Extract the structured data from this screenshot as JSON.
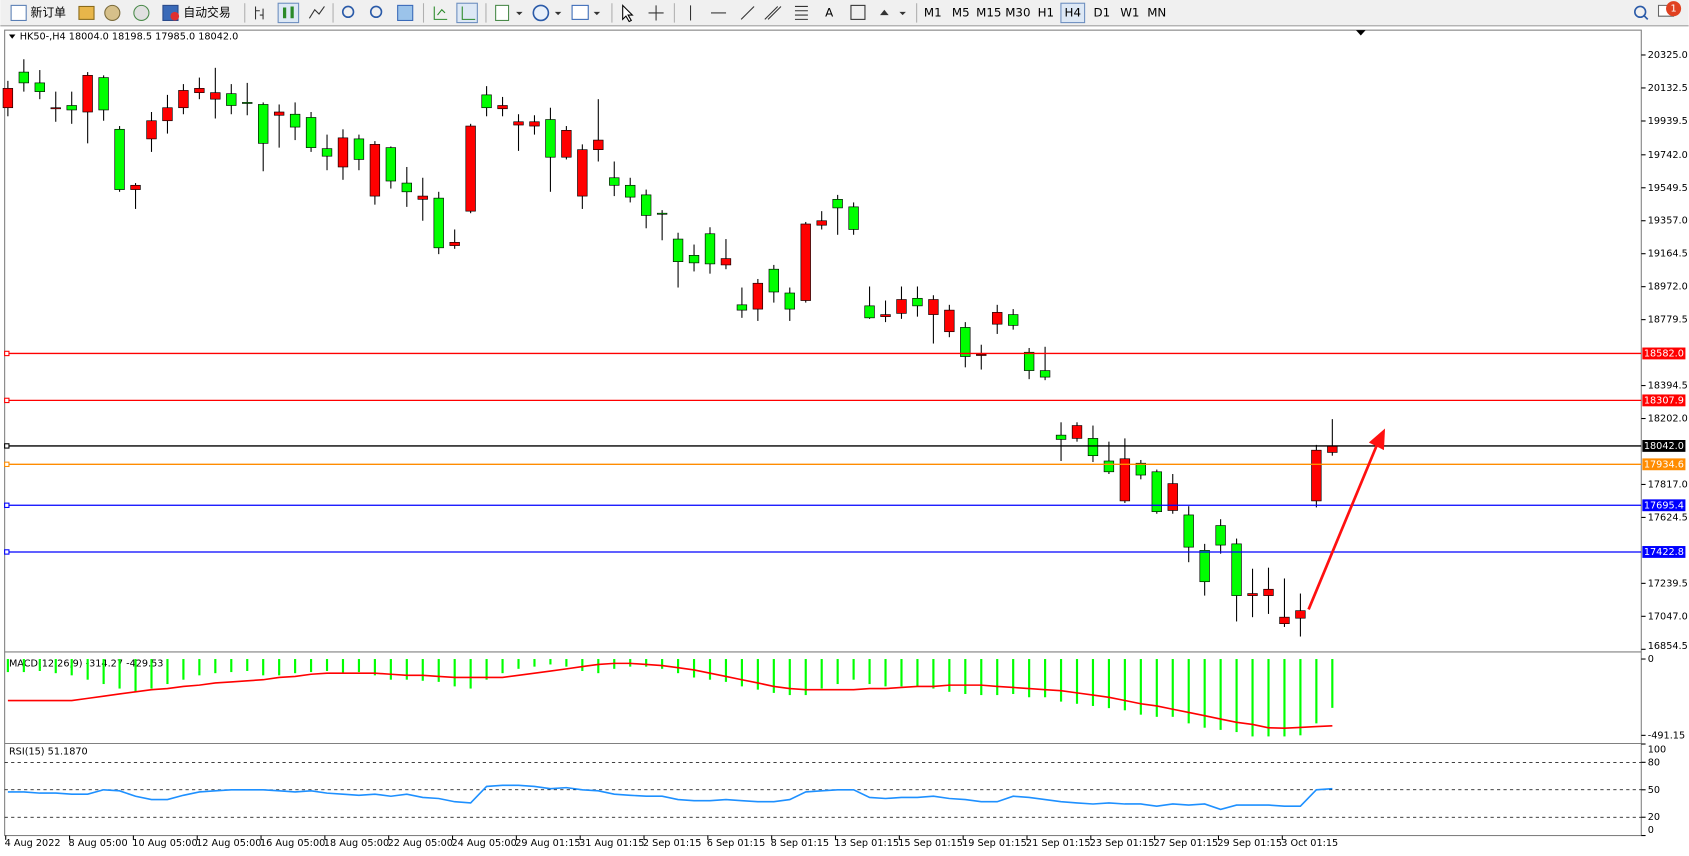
{
  "toolbar": {
    "new_order": "新订单",
    "auto_trading": "自动交易",
    "timeframes": [
      "M1",
      "M5",
      "M15",
      "M30",
      "H1",
      "H4",
      "D1",
      "W1",
      "MN"
    ],
    "notifications": "1"
  },
  "chart_data": [
    {
      "type": "candlestick",
      "title": "HK50-,H4  18004.0 18198.5 17985.0 18042.0",
      "up_color": "#ff0000",
      "down_color": "#00ff00",
      "categories": [
        "4 Aug 2022",
        null,
        null,
        null,
        "8 Aug 05:00",
        null,
        null,
        null,
        "10 Aug 05:00",
        null,
        null,
        null,
        "12 Aug 05:00",
        null,
        null,
        null,
        "16 Aug 05:00",
        null,
        null,
        null,
        "18 Aug 05:00",
        null,
        null,
        null,
        "22 Aug 05:00",
        null,
        null,
        null,
        "24 Aug 05:00",
        null,
        null,
        null,
        "29 Aug 01:15",
        null,
        null,
        null,
        "31 Aug 01:15",
        null,
        null,
        null,
        "2 Sep 01:15",
        null,
        null,
        null,
        "6 Sep 01:15",
        null,
        null,
        null,
        "8 Sep 01:15",
        null,
        null,
        null,
        "13 Sep 01:15",
        null,
        null,
        null,
        "15 Sep 01:15",
        null,
        null,
        null,
        "19 Sep 01:15",
        null,
        null,
        null,
        "21 Sep 01:15",
        null,
        null,
        null,
        "23 Sep 01:15",
        null,
        null,
        null,
        "27 Sep 01:15",
        null,
        null,
        null,
        "29 Sep 01:15",
        null,
        null,
        null,
        "3 Oct 01:15",
        null,
        null,
        null
      ],
      "open": [
        20017,
        20225,
        20162,
        20011,
        20030,
        19992,
        20193,
        19891,
        19539,
        19835,
        19941,
        20017,
        20105,
        20067,
        20099,
        20048,
        20036,
        19973,
        19979,
        19960,
        19778,
        19671,
        19835,
        19501,
        19784,
        19577,
        19482,
        19489,
        19212,
        19413,
        20092,
        20011,
        19916,
        19910,
        19948,
        19728,
        19501,
        19772,
        19608,
        19564,
        19508,
        19401,
        19250,
        19155,
        19281,
        19099,
        18866,
        18841,
        19074,
        18935,
        18891,
        19331,
        19482,
        19438,
        18860,
        18797,
        18816,
        18904,
        18809,
        18709,
        18734,
        18570,
        18753,
        18809,
        18589,
        18482,
        18105,
        18086,
        18086,
        17954,
        17721,
        17941,
        17891,
        17665,
        17639,
        17432,
        17577,
        17470,
        17168,
        17168,
        17004,
        17036,
        17721,
        18004
      ],
      "high": [
        20174,
        20300,
        20237,
        20111,
        20111,
        20225,
        20206,
        19910,
        19577,
        19992,
        20092,
        20155,
        20193,
        20250,
        20155,
        20162,
        20048,
        20036,
        20048,
        19992,
        19860,
        19891,
        19860,
        19822,
        19791,
        19671,
        19608,
        19526,
        19306,
        19923,
        20143,
        20080,
        19979,
        19973,
        20017,
        19910,
        19803,
        20067,
        19703,
        19608,
        19539,
        19419,
        19287,
        19218,
        19319,
        19250,
        18967,
        19017,
        19099,
        18967,
        19350,
        19413,
        19508,
        19464,
        18973,
        18891,
        18973,
        18973,
        18922,
        18866,
        18765,
        18633,
        18866,
        18841,
        18614,
        18621,
        18180,
        18180,
        18161,
        18067,
        18086,
        17960,
        17904,
        17878,
        17690,
        17470,
        17614,
        17501,
        17325,
        17331,
        17268,
        17180,
        18048,
        18198.5
      ],
      "low": [
        19967,
        20111,
        20067,
        19935,
        19923,
        19809,
        19941,
        19526,
        19426,
        19759,
        19866,
        19979,
        20067,
        19954,
        19979,
        19973,
        19646,
        19784,
        19828,
        19759,
        19652,
        19596,
        19652,
        19451,
        19545,
        19438,
        19357,
        19162,
        19193,
        19401,
        19967,
        19967,
        19765,
        19860,
        19526,
        19715,
        19426,
        19703,
        19501,
        19464,
        19313,
        19243,
        18967,
        19061,
        19048,
        19074,
        18790,
        18772,
        18879,
        18772,
        18879,
        19306,
        19275,
        19275,
        18784,
        18765,
        18784,
        18797,
        18640,
        18677,
        18501,
        18488,
        18696,
        18721,
        18432,
        18426,
        17954,
        18067,
        17948,
        17878,
        17709,
        17847,
        17646,
        17646,
        17363,
        17168,
        17413,
        17017,
        17042,
        17061,
        16985,
        16929,
        17683,
        17985
      ],
      "close": [
        20130,
        20162,
        20111,
        20017,
        20004,
        20206,
        20004,
        19539,
        19564,
        19941,
        20017,
        20118,
        20130,
        20105,
        20030,
        20042,
        19809,
        19992,
        19904,
        19784,
        19734,
        19841,
        19715,
        19803,
        19589,
        19526,
        19501,
        19199,
        19231,
        19910,
        20017,
        20030,
        19935,
        19935,
        19728,
        19885,
        19772,
        19828,
        19564,
        19495,
        19388,
        19400,
        19118,
        19111,
        19105,
        19136,
        18835,
        18992,
        18941,
        18841,
        19338,
        19357,
        19432,
        19306,
        18790,
        18809,
        18897,
        18860,
        18897,
        18835,
        18564,
        18577,
        18822,
        18746,
        18482,
        18444,
        18080,
        18161,
        17985,
        17891,
        17967,
        17872,
        17658,
        17822,
        17451,
        17249,
        17463,
        17168,
        17180,
        17205,
        17042,
        17080,
        18017,
        18042
      ],
      "ylim": [
        16842,
        20470
      ],
      "yticks": [
        {
          "value": 20325,
          "label": "20325.0"
        },
        20132.5,
        19939.5,
        {
          "value": 19742,
          "label": "19742.0"
        },
        19549.5,
        {
          "value": 19357,
          "label": "19357.0"
        },
        19164.5,
        {
          "value": 18972,
          "label": "18972.0"
        },
        18779.5,
        18394.5,
        {
          "value": 18202,
          "label": "18202.0"
        },
        {
          "value": 17817,
          "label": "17817.0"
        },
        17624.5,
        17239.5,
        {
          "value": 17047,
          "label": "17047.0"
        },
        16854.5
      ],
      "levels": [
        {
          "value": 18582,
          "label": "18582.0",
          "color": "#ff0000"
        },
        {
          "value": 18307.9,
          "label": "18307.9",
          "color": "#ff0000"
        },
        {
          "value": 18042,
          "label": "18042.0",
          "color": "#000000"
        },
        {
          "value": 17934.6,
          "label": "17934.6",
          "color": "#ff8c00"
        },
        {
          "value": 17695.4,
          "label": "17695.4",
          "color": "#0000ff"
        },
        {
          "value": 17422.8,
          "label": "17422.8",
          "color": "#0000ff"
        }
      ]
    },
    {
      "type": "macd",
      "title": "MACD(12,26,9) -314.27 -429.53",
      "ylim": [
        -540,
        42
      ],
      "yticks": [
        0,
        -491.15
      ],
      "series": [
        {
          "style": "bar",
          "color": "#00ff00",
          "values": [
            -84,
            -84,
            -77,
            -91,
            -105,
            -133,
            -161,
            -190,
            -211,
            -190,
            -161,
            -133,
            -105,
            -91,
            -84,
            -77,
            -105,
            -105,
            -91,
            -84,
            -77,
            -91,
            -84,
            -105,
            -133,
            -133,
            -140,
            -147,
            -176,
            -190,
            -133,
            -91,
            -63,
            -49,
            -35,
            -49,
            -77,
            -91,
            -63,
            -49,
            -49,
            -63,
            -91,
            -119,
            -133,
            -147,
            -176,
            -197,
            -218,
            -232,
            -232,
            -190,
            -161,
            -133,
            -161,
            -176,
            -176,
            -176,
            -190,
            -211,
            -225,
            -232,
            -232,
            -225,
            -246,
            -246,
            -274,
            -288,
            -302,
            -316,
            -330,
            -358,
            -372,
            -372,
            -414,
            -442,
            -456,
            -470,
            -498,
            -498,
            -498,
            -491,
            -414,
            -314.27
          ]
        },
        {
          "style": "line",
          "color": "#ff0000",
          "values": [
            -267,
            -267,
            -267,
            -267,
            -267,
            -253,
            -239,
            -225,
            -211,
            -197,
            -190,
            -176,
            -168,
            -154,
            -147,
            -140,
            -133,
            -119,
            -112,
            -98,
            -91,
            -91,
            -91,
            -91,
            -98,
            -105,
            -105,
            -112,
            -119,
            -119,
            -119,
            -119,
            -105,
            -91,
            -77,
            -63,
            -49,
            -35,
            -28,
            -28,
            -35,
            -42,
            -56,
            -70,
            -91,
            -112,
            -133,
            -154,
            -176,
            -190,
            -197,
            -197,
            -197,
            -197,
            -190,
            -190,
            -183,
            -176,
            -176,
            -168,
            -168,
            -168,
            -176,
            -183,
            -190,
            -197,
            -204,
            -218,
            -232,
            -246,
            -267,
            -288,
            -302,
            -323,
            -344,
            -365,
            -386,
            -407,
            -421,
            -442,
            -445,
            -440,
            -435,
            -429.53
          ]
        }
      ]
    },
    {
      "type": "rsi",
      "title": "RSI(15) 51.1870",
      "ylim": [
        0,
        100
      ],
      "yticks": [
        100,
        80,
        50,
        20,
        0
      ],
      "grid": true,
      "series": [
        {
          "style": "line",
          "color": "#1e90ff",
          "values": [
            47.6,
            47.6,
            46.4,
            46.4,
            45.2,
            45.2,
            50.0,
            48.8,
            42.9,
            39.3,
            39.3,
            44.0,
            47.6,
            48.8,
            50.0,
            50.0,
            50.0,
            48.8,
            47.6,
            48.8,
            46.4,
            45.2,
            44.0,
            45.2,
            42.9,
            45.2,
            41.7,
            40.5,
            36.9,
            35.7,
            53.6,
            54.8,
            54.8,
            53.6,
            51.2,
            52.4,
            50.0,
            48.8,
            45.2,
            44.0,
            42.9,
            42.9,
            39.3,
            38.1,
            38.1,
            39.3,
            38.1,
            36.9,
            36.9,
            39.3,
            47.6,
            48.8,
            50.0,
            50.0,
            41.7,
            40.5,
            41.7,
            41.7,
            42.9,
            40.5,
            39.3,
            36.9,
            36.9,
            42.9,
            41.7,
            39.3,
            36.9,
            35.7,
            34.5,
            35.7,
            34.5,
            34.5,
            32.1,
            34.5,
            33.3,
            34.5,
            28.6,
            33.3,
            33.3,
            33.3,
            32.1,
            32.1,
            50.0,
            51.187
          ]
        }
      ]
    }
  ]
}
